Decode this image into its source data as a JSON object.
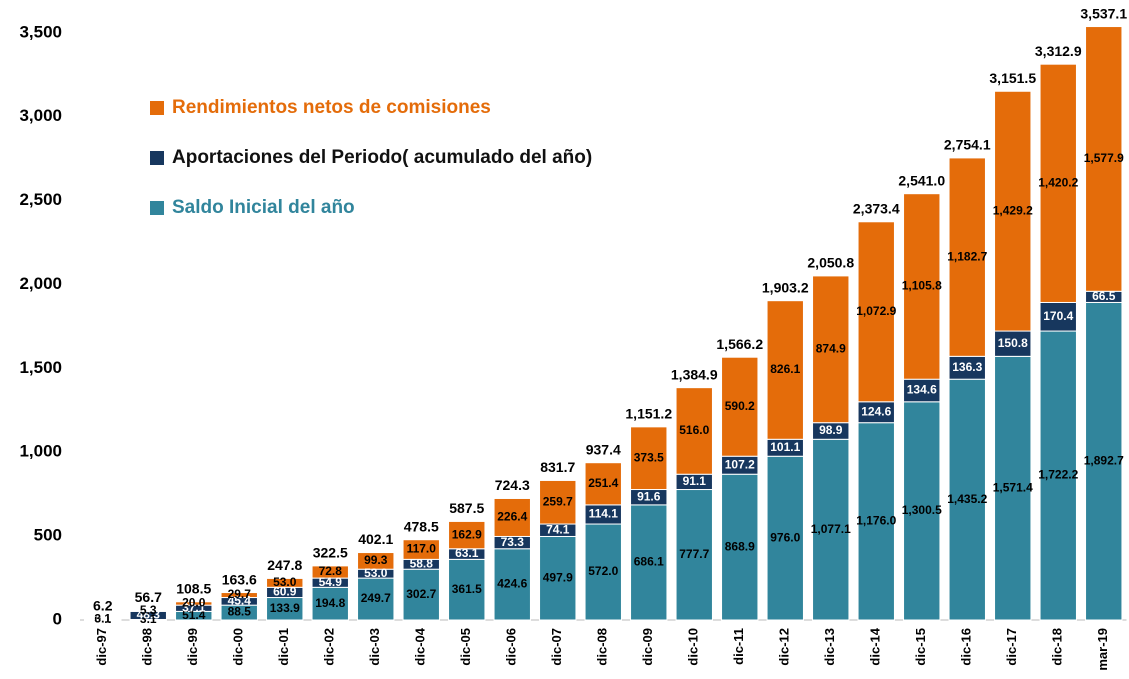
{
  "chart_data": {
    "type": "stacked_bar",
    "categories": [
      "dic-97",
      "dic-98",
      "dic-99",
      "dic-00",
      "dic-01",
      "dic-02",
      "dic-03",
      "dic-04",
      "dic-05",
      "dic-06",
      "dic-07",
      "dic-08",
      "dic-09",
      "dic-10",
      "dic-11",
      "dic-12",
      "dic-13",
      "dic-14",
      "dic-15",
      "dic-16",
      "dic-17",
      "dic-18",
      "mar-19"
    ],
    "series": [
      {
        "name": "Saldo Inicial del año",
        "color": "#31859c",
        "label_color": "#000000",
        "values": [
          0.1,
          3.1,
          51.4,
          88.5,
          133.9,
          194.8,
          249.7,
          302.7,
          361.5,
          424.6,
          497.9,
          572.0,
          686.1,
          777.7,
          868.9,
          976.0,
          1077.1,
          1176.0,
          1300.5,
          1435.2,
          1571.4,
          1722.2,
          1892.7
        ],
        "value_labels": [
          "0.1",
          "3.1",
          "51.4",
          "88.5",
          "133.9",
          "194.8",
          "249.7",
          "302.7",
          "361.5",
          "424.6",
          "497.9",
          "572.0",
          "686.1",
          "777.7",
          "868.9",
          "976.0",
          "1,077.1",
          "1,176.0",
          "1,300.5",
          "1,435.2",
          "1,571.4",
          "1,722.2",
          "1,892.7"
        ]
      },
      {
        "name": "Aportaciones del Periodo( acumulado del año)",
        "color": "#17375e",
        "label_color": "#ffffff",
        "values": [
          3.0,
          48.3,
          37.1,
          45.4,
          60.9,
          54.9,
          53.0,
          58.8,
          63.1,
          73.3,
          74.1,
          114.1,
          91.6,
          91.1,
          107.2,
          101.1,
          98.9,
          124.6,
          134.6,
          136.3,
          150.8,
          170.4,
          66.5
        ],
        "value_labels": [
          "3.0",
          "48.3",
          "37.1",
          "45.4",
          "60.9",
          "54.9",
          "53.0",
          "58.8",
          "63.1",
          "73.3",
          "74.1",
          "114.1",
          "91.6",
          "91.1",
          "107.2",
          "101.1",
          "98.9",
          "124.6",
          "134.6",
          "136.3",
          "150.8",
          "170.4",
          "66.5"
        ]
      },
      {
        "name": "Rendimientos netos de comisiones",
        "color": "#e46c0a",
        "label_color": "#000000",
        "values": [
          3.1,
          5.3,
          20.0,
          29.7,
          53.0,
          72.8,
          99.3,
          117.0,
          162.9,
          226.4,
          259.7,
          251.4,
          373.5,
          516.0,
          590.2,
          826.1,
          874.9,
          1072.9,
          1105.8,
          1182.7,
          1429.2,
          1420.2,
          1577.9
        ],
        "value_labels": [
          "3.1",
          "5.3",
          "20.0",
          "29.7",
          "53.0",
          "72.8",
          "99.3",
          "117.0",
          "162.9",
          "226.4",
          "259.7",
          "251.4",
          "373.5",
          "516.0",
          "590.2",
          "826.1",
          "874.9",
          "1,072.9",
          "1,105.8",
          "1,182.7",
          "1,429.2",
          "1,420.2",
          "1,577.9"
        ]
      }
    ],
    "totals": [
      6.2,
      56.7,
      108.5,
      163.6,
      247.8,
      322.5,
      402.1,
      478.5,
      587.5,
      724.3,
      831.7,
      937.4,
      1151.2,
      1384.9,
      1566.2,
      1903.2,
      2050.8,
      2373.4,
      2541.0,
      2754.1,
      3151.5,
      3312.9,
      3537.1
    ],
    "total_labels": [
      "6.2",
      "56.7",
      "108.5",
      "163.6",
      "247.8",
      "322.5",
      "402.1",
      "478.5",
      "587.5",
      "724.3",
      "831.7",
      "937.4",
      "1,151.2",
      "1,384.9",
      "1,566.2",
      "1,903.2",
      "2,050.8",
      "2,373.4",
      "2,541.0",
      "2,754.1",
      "3,151.5",
      "3,312.9",
      "3,537.1"
    ],
    "ylim": [
      0,
      3600
    ],
    "yticks": [
      0,
      500,
      {
        "value": 1000,
        "label": "1,000"
      },
      {
        "value": 1500,
        "label": "1,500"
      },
      {
        "value": 2000,
        "label": "2,000"
      },
      {
        "value": 2500,
        "label": "2,500"
      },
      {
        "value": 3000,
        "label": "3,000"
      },
      {
        "value": 3500,
        "label": "3,500"
      }
    ]
  }
}
